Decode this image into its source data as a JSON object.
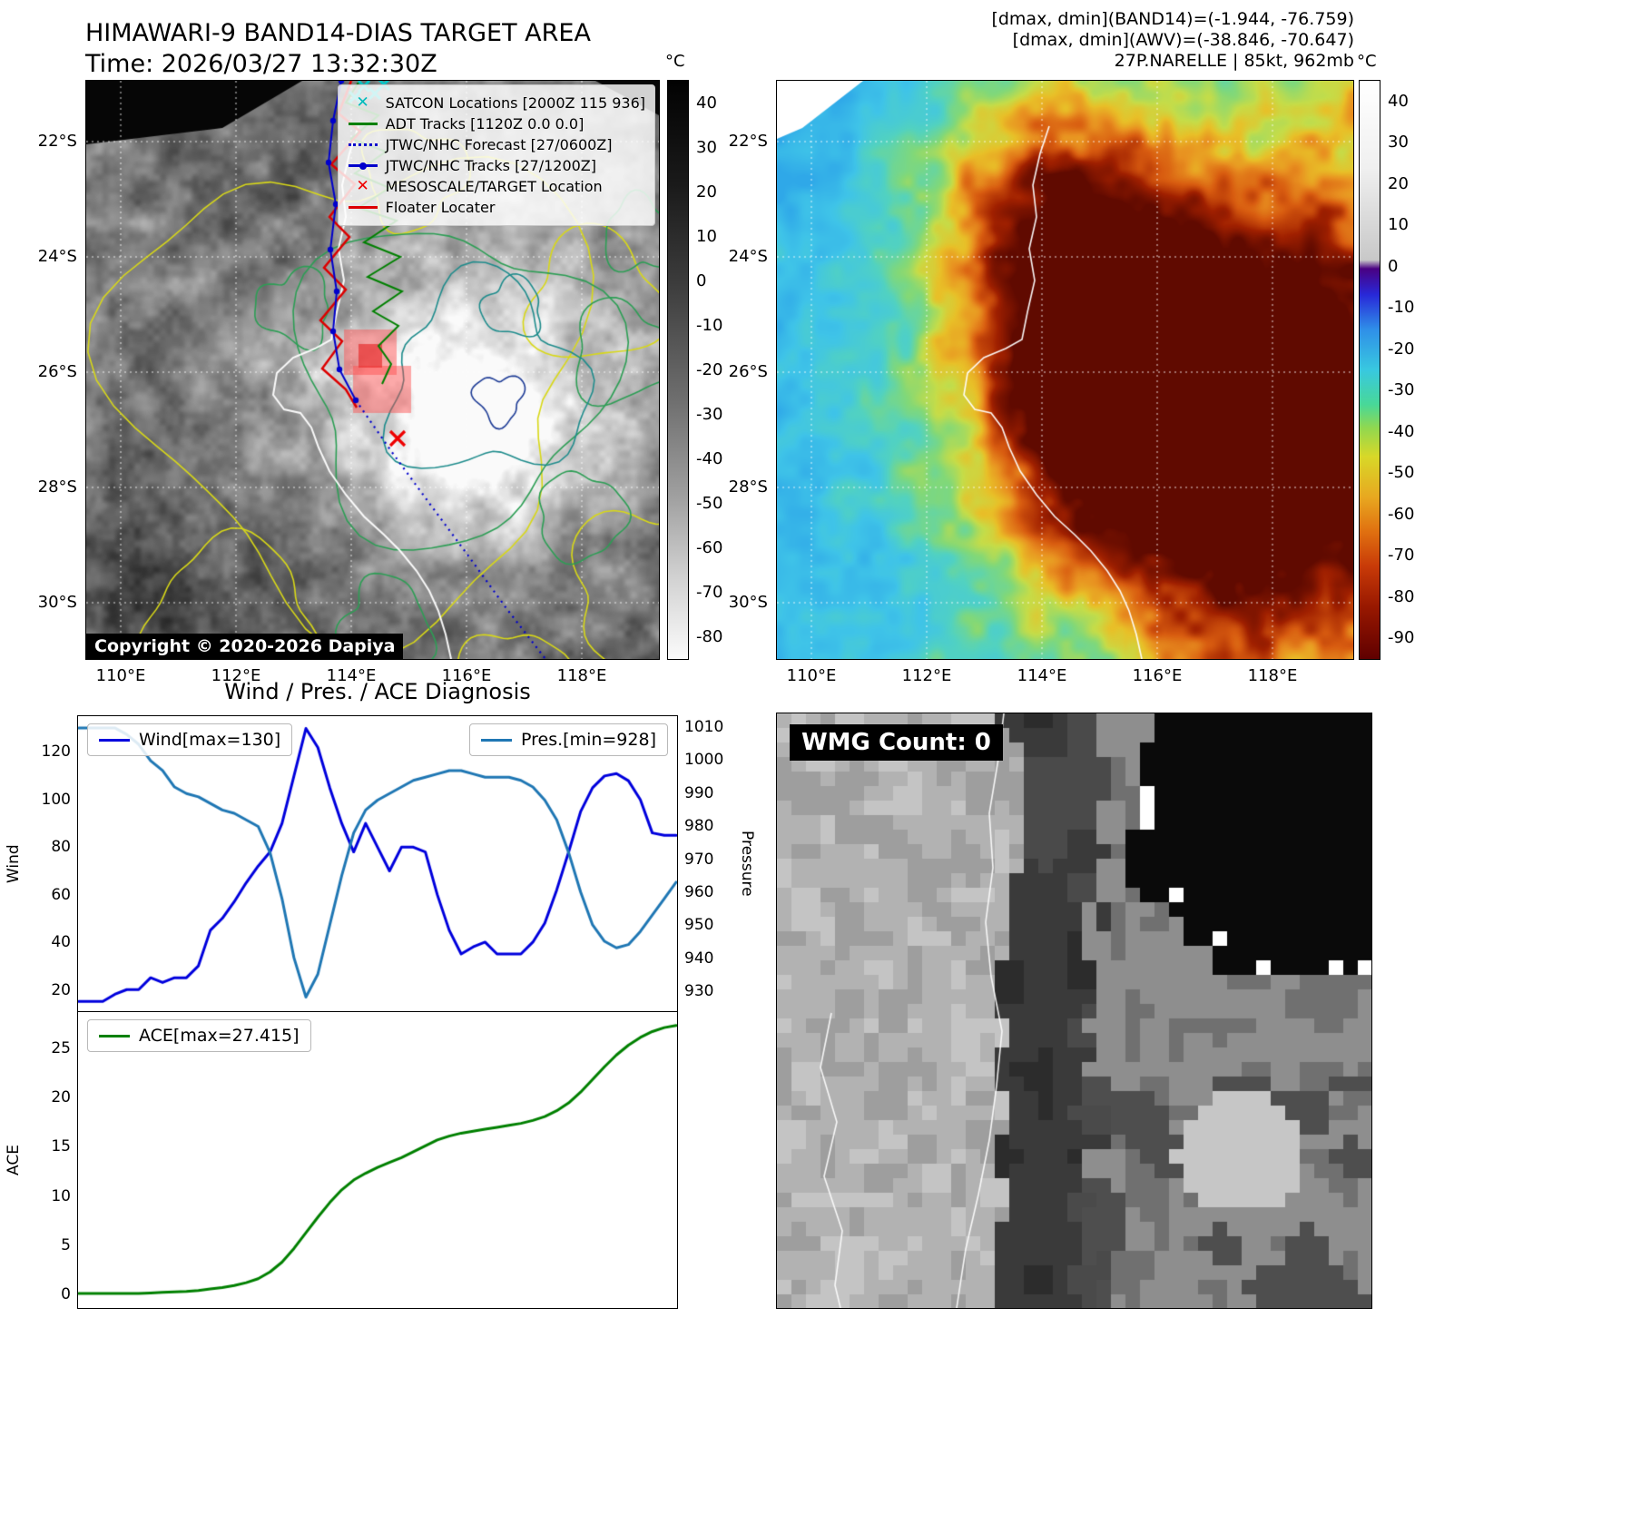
{
  "top_left": {
    "title": "HIMAWARI-9 BAND14-DIAS TARGET AREA",
    "subtitle": "Time: 2026/03/27 13:32:30Z",
    "copyright": "Copyright © 2020-2026 Dapiya",
    "x_ticks": [
      "110°E",
      "112°E",
      "114°E",
      "116°E",
      "118°E"
    ],
    "y_ticks": [
      "22°S",
      "24°S",
      "26°S",
      "28°S",
      "30°S"
    ],
    "colorbar": {
      "unit": "°C",
      "ticks": [
        40,
        30,
        20,
        10,
        0,
        -10,
        -20,
        -30,
        -40,
        -50,
        -60,
        -70,
        -80
      ]
    },
    "legend": [
      {
        "label": "SATCON Locations [2000Z 115 936]",
        "marker": "x",
        "color": "#00bcbc",
        "icon": "satcon-x-icon"
      },
      {
        "label": "ADT Tracks [1120Z 0.0 0.0]",
        "marker": "line",
        "color": "#008000",
        "icon": "adt-track-line-icon"
      },
      {
        "label": "JTWC/NHC Forecast [27/0600Z]",
        "marker": "dotted",
        "color": "#0000cc",
        "icon": "forecast-dotted-line-icon"
      },
      {
        "label": "JTWC/NHC Tracks [27/1200Z]",
        "marker": "line-dot",
        "color": "#0000cc",
        "icon": "jtwc-track-line-icon"
      },
      {
        "label": "MESOSCALE/TARGET Location",
        "marker": "x",
        "color": "#ee0000",
        "icon": "target-x-icon"
      },
      {
        "label": "Floater Locater",
        "marker": "line",
        "color": "#dd0000",
        "icon": "floater-line-icon"
      }
    ]
  },
  "top_right": {
    "info_line1": "[dmax, dmin](BAND14)=(-1.944, -76.759)",
    "info_line2": "[dmax, dmin](AWV)=(-38.846, -70.647)",
    "info_line3": "27P.NARELLE | 85kt, 962mb",
    "x_ticks": [
      "110°E",
      "112°E",
      "114°E",
      "116°E",
      "118°E"
    ],
    "y_ticks": [
      "22°S",
      "24°S",
      "26°S",
      "28°S",
      "30°S"
    ],
    "colorbar": {
      "unit": "°C",
      "ticks": [
        40,
        30,
        20,
        10,
        0,
        -10,
        -20,
        -30,
        -40,
        -50,
        -60,
        -70,
        -80,
        -90
      ]
    }
  },
  "bottom_left": {
    "title": "Wind / Pres. / ACE Diagnosis"
  },
  "bottom_right": {
    "wmg_label": "WMG Count: 0"
  },
  "chart_data": [
    {
      "type": "line",
      "title": "Wind / Pres. / ACE Diagnosis",
      "x_axis": {
        "labels_visible": false,
        "range_normalized": [
          0,
          1
        ]
      },
      "left_axis": {
        "label": "Wind",
        "ticks": [
          20,
          40,
          60,
          80,
          100,
          120
        ],
        "ylim": [
          11.3,
          134.8
        ]
      },
      "right_axis": {
        "label": "Pressure",
        "ticks": [
          930,
          940,
          950,
          960,
          970,
          980,
          990,
          1000,
          1010
        ],
        "ylim": [
          924,
          1013.3
        ]
      },
      "series": [
        {
          "name": "Wind[max=130]",
          "axis": "left",
          "color": "#0000dd",
          "max": 130,
          "values": [
            15,
            15,
            15,
            18,
            20,
            20,
            25,
            23,
            25,
            25,
            30,
            45,
            50,
            57,
            65,
            72,
            78,
            90,
            110,
            130,
            122,
            105,
            90,
            78,
            90,
            80,
            70,
            80,
            80,
            78,
            60,
            45,
            35,
            38,
            40,
            35,
            35,
            35,
            40,
            48,
            62,
            78,
            95,
            105,
            110,
            111,
            108,
            100,
            86,
            85,
            85
          ]
        },
        {
          "name": "Pres.[min=928]",
          "axis": "right",
          "color": "#1f77b4",
          "min": 928,
          "values": [
            1010,
            1010,
            1010,
            1010,
            1008,
            1005,
            1000,
            997,
            992,
            990,
            989,
            987,
            985,
            984,
            982,
            980,
            972,
            958,
            940,
            928,
            935,
            950,
            965,
            978,
            985,
            988,
            990,
            992,
            994,
            995,
            996,
            997,
            997,
            996,
            995,
            995,
            995,
            994,
            992,
            988,
            982,
            972,
            960,
            950,
            945,
            943,
            944,
            948,
            953,
            958,
            963
          ]
        }
      ]
    },
    {
      "type": "line",
      "x_axis": {
        "labels_visible": false,
        "range_normalized": [
          0,
          1
        ]
      },
      "left_axis": {
        "label": "ACE",
        "ticks": [
          0,
          5,
          10,
          15,
          20,
          25
        ],
        "ylim": [
          -1.4,
          28.7
        ]
      },
      "series": [
        {
          "name": "ACE[max=27.415]",
          "color": "#008000",
          "max": 27.415,
          "values": [
            0,
            0,
            0,
            0,
            0,
            0,
            0.05,
            0.1,
            0.15,
            0.2,
            0.3,
            0.45,
            0.6,
            0.8,
            1.1,
            1.5,
            2.2,
            3.2,
            4.6,
            6.2,
            7.8,
            9.3,
            10.6,
            11.6,
            12.3,
            12.9,
            13.4,
            13.9,
            14.5,
            15.1,
            15.7,
            16.1,
            16.4,
            16.6,
            16.8,
            17,
            17.2,
            17.4,
            17.7,
            18.1,
            18.7,
            19.5,
            20.6,
            21.9,
            23.2,
            24.4,
            25.4,
            26.2,
            26.8,
            27.2,
            27.415
          ]
        }
      ]
    }
  ]
}
